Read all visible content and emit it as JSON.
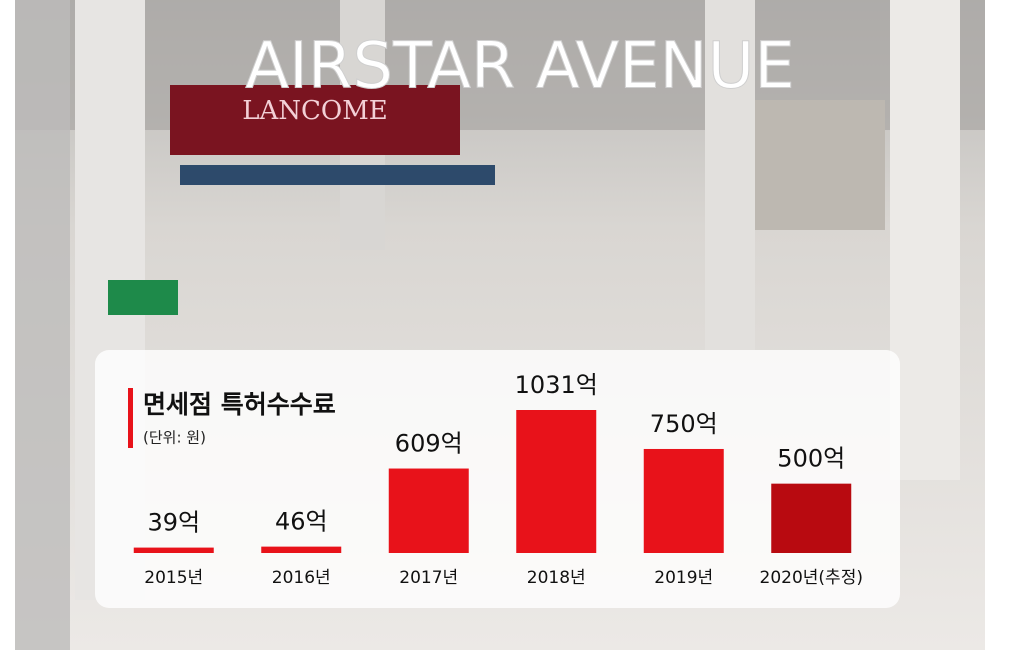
{
  "chart_data": {
    "type": "bar",
    "title": "면세점 특허수수료",
    "subtitle": "(단위: 원)",
    "categories": [
      "2015년",
      "2016년",
      "2017년",
      "2018년",
      "2019년",
      "2020년(추정)"
    ],
    "values": [
      39,
      46,
      609,
      1031,
      750,
      500
    ],
    "value_labels": [
      "39억",
      "46억",
      "609억",
      "1031억",
      "750억",
      "500억"
    ],
    "colors": [
      "#e8121a",
      "#e8121a",
      "#e8121a",
      "#e8121a",
      "#e8121a",
      "#b80a10"
    ]
  },
  "background": {
    "sign": "AIRSTAR AVENUE",
    "billboard": "LANCOME"
  }
}
